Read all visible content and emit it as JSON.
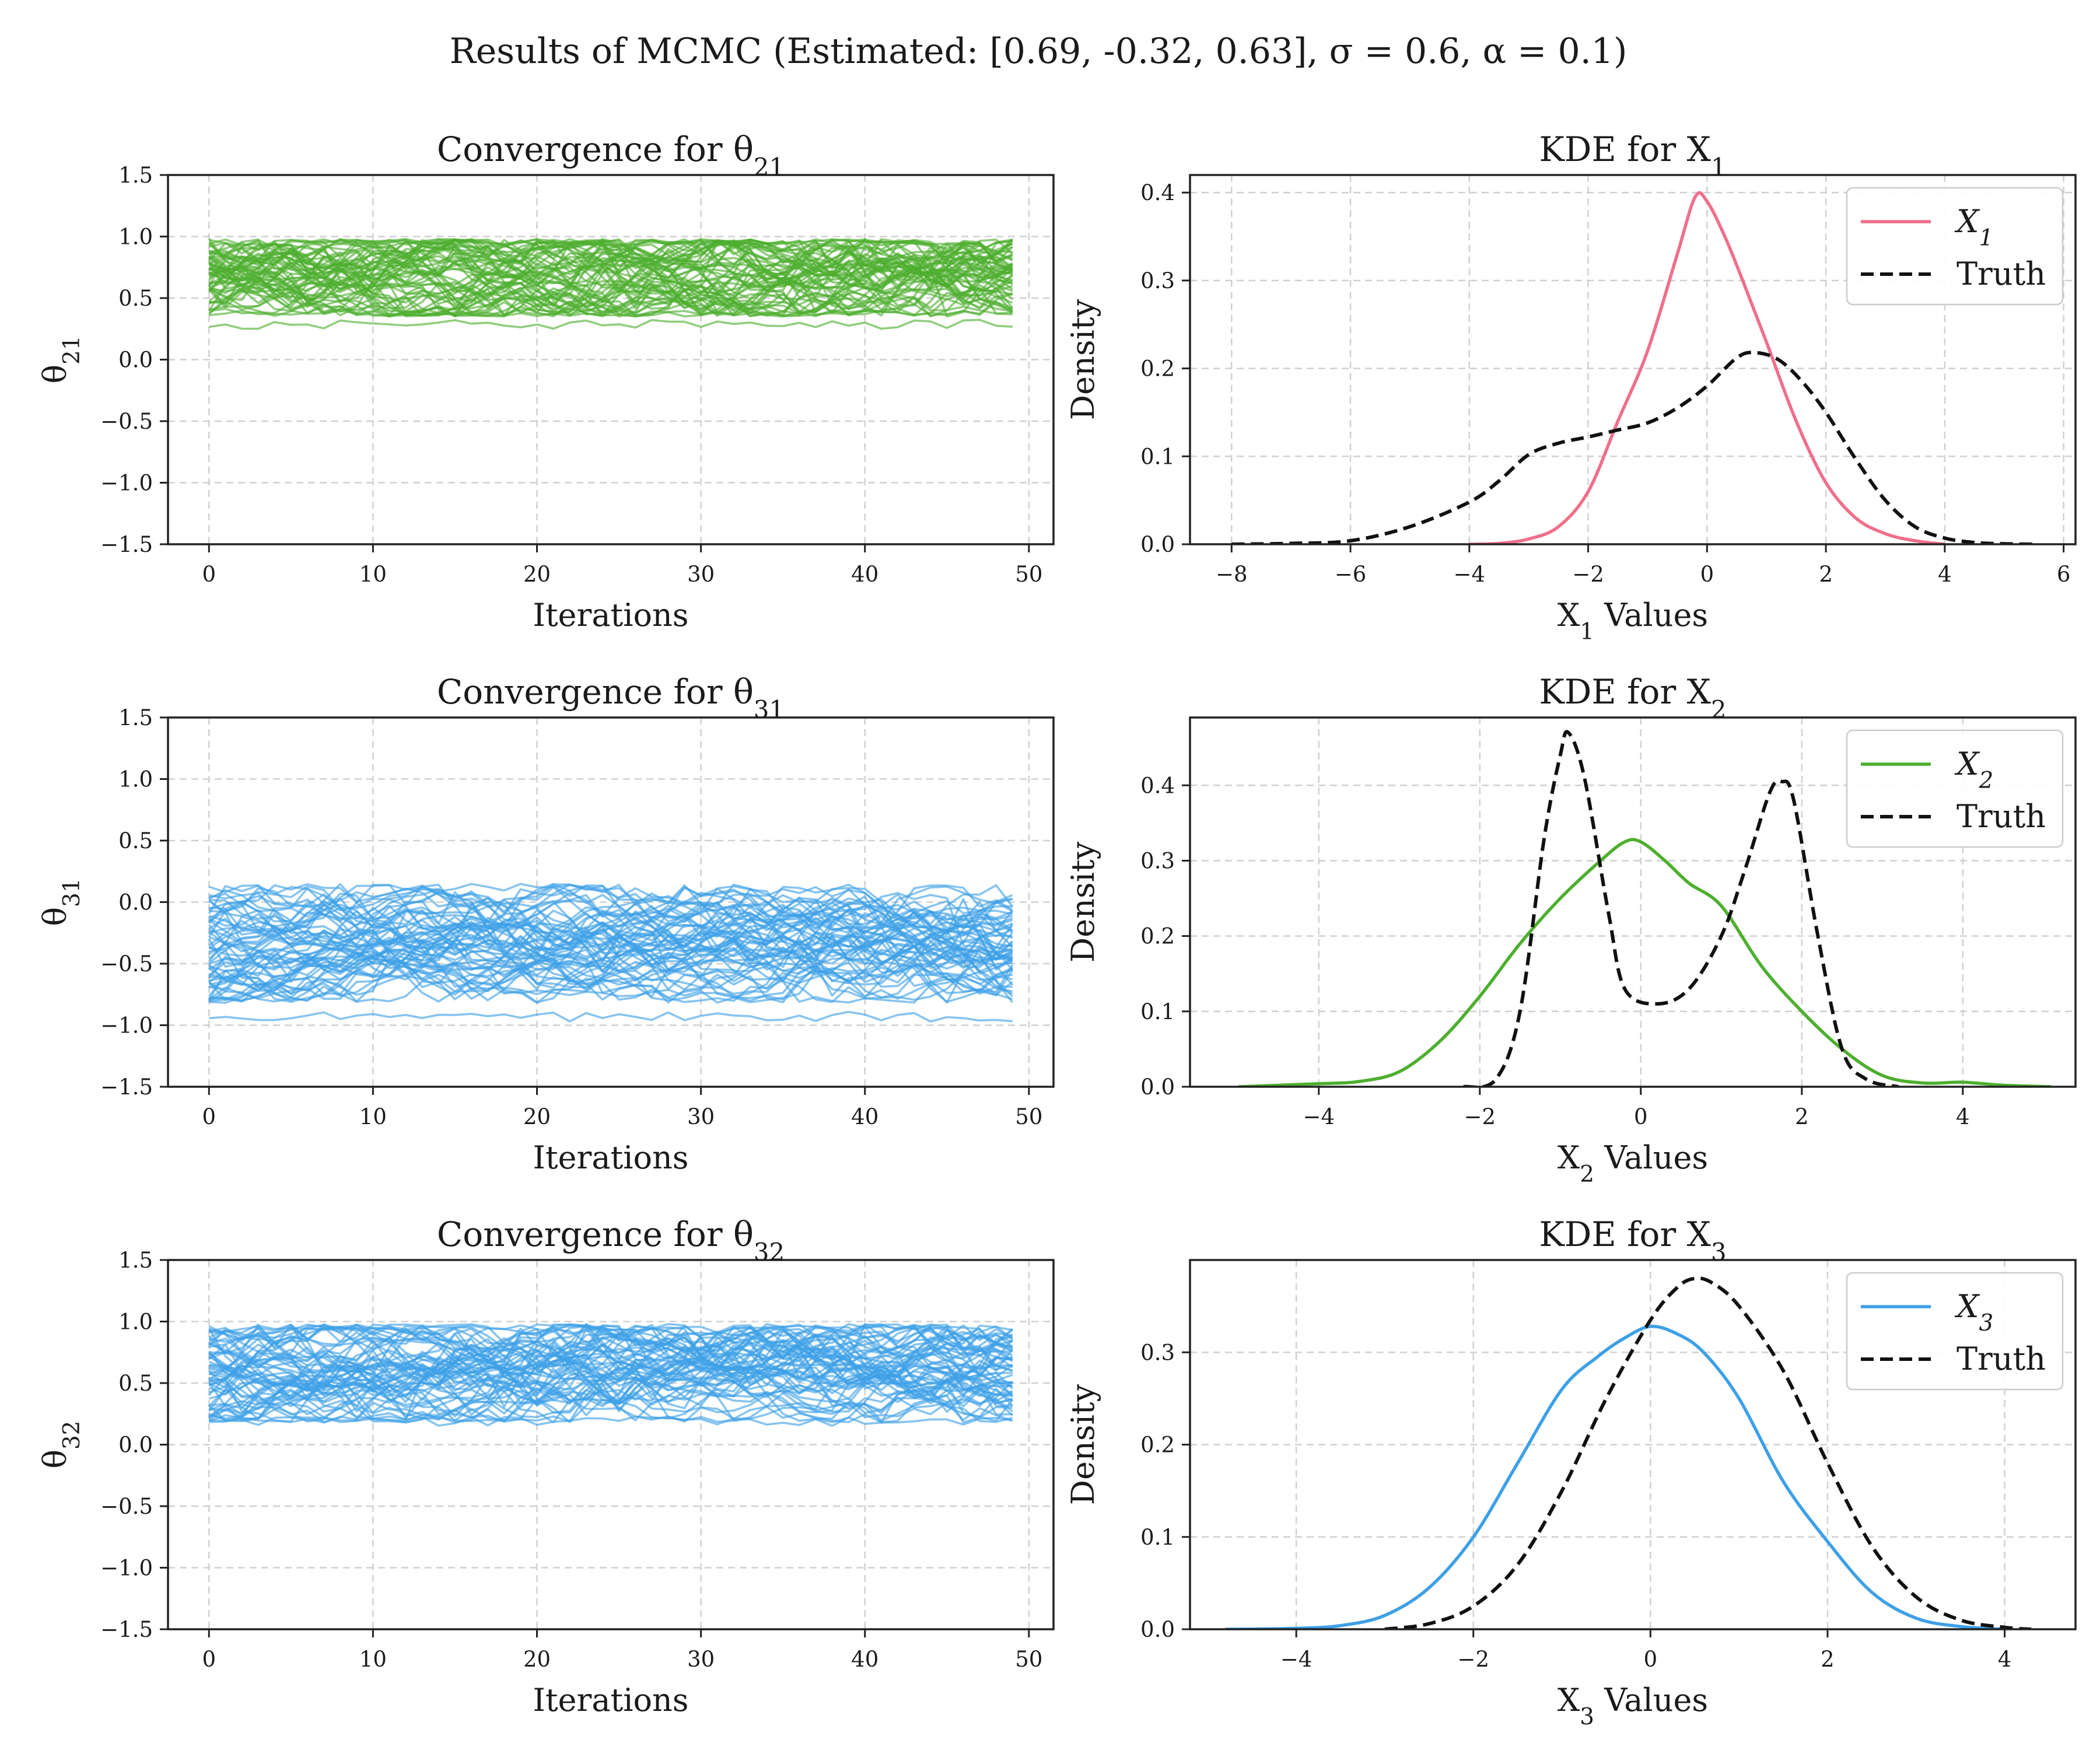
{
  "suptitle": "Results of MCMC (Estimated: [0.69, -0.32, 0.63], σ = 0.6, α = 0.1)",
  "colors": {
    "trace_theta21": "#4daf2e",
    "trace_theta31": "#3da0e6",
    "trace_theta32": "#3da0e6",
    "kde_x1": "#ef6f8b",
    "kde_x2": "#4daf2e",
    "kde_x3": "#3da0e6",
    "truth": "#111111"
  },
  "chart_data": [
    {
      "type": "line",
      "panel": "trace-theta21",
      "title": "Convergence for θ₂₁",
      "title_base": "Convergence for θ",
      "title_sub": "21",
      "xlabel": "Iterations",
      "ylabel": "θ₂₁",
      "ylabel_base": "θ",
      "ylabel_sub": "21",
      "xlim": [
        -2.5,
        51.5
      ],
      "ylim": [
        -1.5,
        1.5
      ],
      "xticks": [
        0,
        10,
        20,
        30,
        40,
        50
      ],
      "yticks": [
        -1.5,
        -1.0,
        -0.5,
        0.0,
        0.5,
        1.0,
        1.5
      ],
      "xtick_labels": [
        "0",
        "10",
        "20",
        "30",
        "40",
        "50"
      ],
      "ytick_labels": [
        "−1.5",
        "−1.0",
        "−0.5",
        "0.0",
        "0.5",
        "1.0",
        "1.5"
      ],
      "grid": true,
      "iterations": [
        0,
        49
      ],
      "num_chains": 60,
      "band": {
        "low": 0.35,
        "high": 0.98,
        "center": 0.69
      },
      "outlier_low": 0.25
    },
    {
      "type": "line",
      "panel": "kde-x1",
      "title": "KDE for X₁",
      "title_base": "KDE for X",
      "title_sub": "1",
      "xlabel": "X₁ Values",
      "xlabel_base": "X",
      "xlabel_sub": "1",
      "xlabel_rest": " Values",
      "ylabel": "Density",
      "xlim": [
        -8.7,
        6.2
      ],
      "ylim": [
        0,
        0.42
      ],
      "xticks": [
        -8,
        -6,
        -4,
        -2,
        0,
        2,
        4,
        6
      ],
      "yticks": [
        0.0,
        0.1,
        0.2,
        0.3,
        0.4
      ],
      "xtick_labels": [
        "−8",
        "−6",
        "−4",
        "−2",
        "0",
        "2",
        "4",
        "6"
      ],
      "ytick_labels": [
        "0.0",
        "0.1",
        "0.2",
        "0.3",
        "0.4"
      ],
      "grid": true,
      "legend_position": "upper right",
      "series": [
        {
          "name": "X₁",
          "name_base": "X",
          "name_sub": "1",
          "style": "solid",
          "x": [
            -4.0,
            -3.5,
            -3.0,
            -2.5,
            -2.0,
            -1.5,
            -1.0,
            -0.5,
            -0.2,
            0.0,
            0.3,
            0.6,
            1.0,
            1.5,
            2.0,
            2.5,
            3.0,
            3.5,
            4.0
          ],
          "y": [
            0.0,
            0.001,
            0.006,
            0.02,
            0.06,
            0.14,
            0.22,
            0.33,
            0.395,
            0.39,
            0.35,
            0.3,
            0.23,
            0.14,
            0.07,
            0.03,
            0.012,
            0.004,
            0.0
          ]
        },
        {
          "name": "Truth",
          "style": "dashed",
          "x": [
            -8.0,
            -7.0,
            -6.0,
            -5.0,
            -4.0,
            -3.5,
            -3.0,
            -2.5,
            -2.0,
            -1.5,
            -1.0,
            -0.5,
            0.0,
            0.5,
            0.8,
            1.2,
            1.6,
            2.0,
            2.5,
            3.0,
            3.5,
            4.0,
            4.5,
            5.0,
            5.5
          ],
          "y": [
            0.0,
            0.001,
            0.004,
            0.02,
            0.048,
            0.072,
            0.102,
            0.115,
            0.122,
            0.13,
            0.138,
            0.155,
            0.18,
            0.212,
            0.218,
            0.21,
            0.185,
            0.15,
            0.097,
            0.05,
            0.02,
            0.007,
            0.002,
            0.0005,
            0.0
          ]
        }
      ]
    },
    {
      "type": "line",
      "panel": "trace-theta31",
      "title": "Convergence for θ₃₁",
      "title_base": "Convergence for θ",
      "title_sub": "31",
      "xlabel": "Iterations",
      "ylabel": "θ₃₁",
      "ylabel_base": "θ",
      "ylabel_sub": "31",
      "xlim": [
        -2.5,
        51.5
      ],
      "ylim": [
        -1.5,
        1.5
      ],
      "xticks": [
        0,
        10,
        20,
        30,
        40,
        50
      ],
      "yticks": [
        -1.5,
        -1.0,
        -0.5,
        0.0,
        0.5,
        1.0,
        1.5
      ],
      "xtick_labels": [
        "0",
        "10",
        "20",
        "30",
        "40",
        "50"
      ],
      "ytick_labels": [
        "−1.5",
        "−1.0",
        "−0.5",
        "0.0",
        "0.5",
        "1.0",
        "1.5"
      ],
      "grid": true,
      "iterations": [
        0,
        49
      ],
      "num_chains": 60,
      "band": {
        "low": -0.82,
        "high": 0.15,
        "center": -0.32
      },
      "outlier_low": -0.97
    },
    {
      "type": "line",
      "panel": "kde-x2",
      "title": "KDE for X₂",
      "title_base": "KDE for X",
      "title_sub": "2",
      "xlabel": "X₂ Values",
      "xlabel_base": "X",
      "xlabel_sub": "2",
      "xlabel_rest": " Values",
      "ylabel": "Density",
      "xlim": [
        -5.6,
        5.4
      ],
      "ylim": [
        0,
        0.49
      ],
      "xticks": [
        -4,
        -2,
        0,
        2,
        4
      ],
      "yticks": [
        0.0,
        0.1,
        0.2,
        0.3,
        0.4
      ],
      "xtick_labels": [
        "−4",
        "−2",
        "0",
        "2",
        "4"
      ],
      "ytick_labels": [
        "0.0",
        "0.1",
        "0.2",
        "0.3",
        "0.4"
      ],
      "grid": true,
      "legend_position": "upper right",
      "series": [
        {
          "name": "X₂",
          "name_base": "X",
          "name_sub": "2",
          "style": "solid",
          "x": [
            -5.0,
            -4.0,
            -3.5,
            -3.0,
            -2.5,
            -2.0,
            -1.5,
            -1.0,
            -0.5,
            -0.2,
            0.0,
            0.3,
            0.6,
            1.0,
            1.5,
            2.0,
            2.5,
            3.0,
            3.5,
            4.0,
            4.5,
            5.1
          ],
          "y": [
            0.0,
            0.004,
            0.007,
            0.02,
            0.06,
            0.12,
            0.19,
            0.25,
            0.3,
            0.325,
            0.325,
            0.3,
            0.27,
            0.24,
            0.16,
            0.1,
            0.05,
            0.015,
            0.005,
            0.006,
            0.002,
            0.0
          ]
        },
        {
          "name": "Truth",
          "style": "dashed",
          "x": [
            -2.2,
            -1.8,
            -1.5,
            -1.2,
            -1.0,
            -0.9,
            -0.7,
            -0.4,
            -0.2,
            0.2,
            0.6,
            1.0,
            1.3,
            1.6,
            1.75,
            1.9,
            2.2,
            2.5,
            2.8,
            3.2
          ],
          "y": [
            0.0,
            0.01,
            0.1,
            0.33,
            0.44,
            0.47,
            0.41,
            0.23,
            0.13,
            0.11,
            0.13,
            0.2,
            0.29,
            0.39,
            0.405,
            0.38,
            0.2,
            0.05,
            0.01,
            0.0
          ]
        }
      ]
    },
    {
      "type": "line",
      "panel": "trace-theta32",
      "title": "Convergence for θ₃₂",
      "title_base": "Convergence for θ",
      "title_sub": "32",
      "xlabel": "Iterations",
      "ylabel": "θ₃₂",
      "ylabel_base": "θ",
      "ylabel_sub": "32",
      "xlim": [
        -2.5,
        51.5
      ],
      "ylim": [
        -1.5,
        1.5
      ],
      "xticks": [
        0,
        10,
        20,
        30,
        40,
        50
      ],
      "yticks": [
        -1.5,
        -1.0,
        -0.5,
        0.0,
        0.5,
        1.0,
        1.5
      ],
      "xtick_labels": [
        "0",
        "10",
        "20",
        "30",
        "40",
        "50"
      ],
      "ytick_labels": [
        "−1.5",
        "−1.0",
        "−0.5",
        "0.0",
        "0.5",
        "1.0",
        "1.5"
      ],
      "grid": true,
      "iterations": [
        0,
        49
      ],
      "num_chains": 60,
      "band": {
        "low": 0.18,
        "high": 0.98,
        "center": 0.63
      },
      "outlier_low": 0.15
    },
    {
      "type": "line",
      "panel": "kde-x3",
      "title": "KDE for X₃",
      "title_base": "KDE for X",
      "title_sub": "3",
      "xlabel": "X₃ Values",
      "xlabel_base": "X",
      "xlabel_sub": "3",
      "xlabel_rest": " Values",
      "ylabel": "Density",
      "xlim": [
        -5.2,
        4.8
      ],
      "ylim": [
        0,
        0.4
      ],
      "xticks": [
        -4,
        -2,
        0,
        2,
        4
      ],
      "yticks": [
        0.0,
        0.1,
        0.2,
        0.3
      ],
      "xtick_labels": [
        "−4",
        "−2",
        "0",
        "2",
        "4"
      ],
      "ytick_labels": [
        "0.0",
        "0.1",
        "0.2",
        "0.3"
      ],
      "grid": true,
      "legend_position": "upper right",
      "series": [
        {
          "name": "X₃",
          "name_base": "X",
          "name_sub": "3",
          "style": "solid",
          "x": [
            -4.8,
            -4.0,
            -3.5,
            -3.0,
            -2.5,
            -2.0,
            -1.5,
            -1.0,
            -0.6,
            -0.3,
            0.0,
            0.3,
            0.6,
            1.0,
            1.5,
            2.0,
            2.5,
            3.0,
            3.5,
            4.0
          ],
          "y": [
            0.0,
            0.001,
            0.004,
            0.015,
            0.045,
            0.1,
            0.18,
            0.26,
            0.295,
            0.315,
            0.328,
            0.32,
            0.3,
            0.25,
            0.16,
            0.095,
            0.04,
            0.012,
            0.003,
            0.0
          ]
        },
        {
          "name": "Truth",
          "style": "dashed",
          "x": [
            -3.0,
            -2.5,
            -2.0,
            -1.5,
            -1.0,
            -0.5,
            0.0,
            0.3,
            0.5,
            0.7,
            1.0,
            1.5,
            2.0,
            2.5,
            3.0,
            3.5,
            4.0,
            4.3
          ],
          "y": [
            0.0,
            0.006,
            0.025,
            0.07,
            0.15,
            0.25,
            0.335,
            0.37,
            0.38,
            0.375,
            0.35,
            0.28,
            0.18,
            0.09,
            0.035,
            0.01,
            0.002,
            0.0
          ]
        }
      ]
    }
  ]
}
